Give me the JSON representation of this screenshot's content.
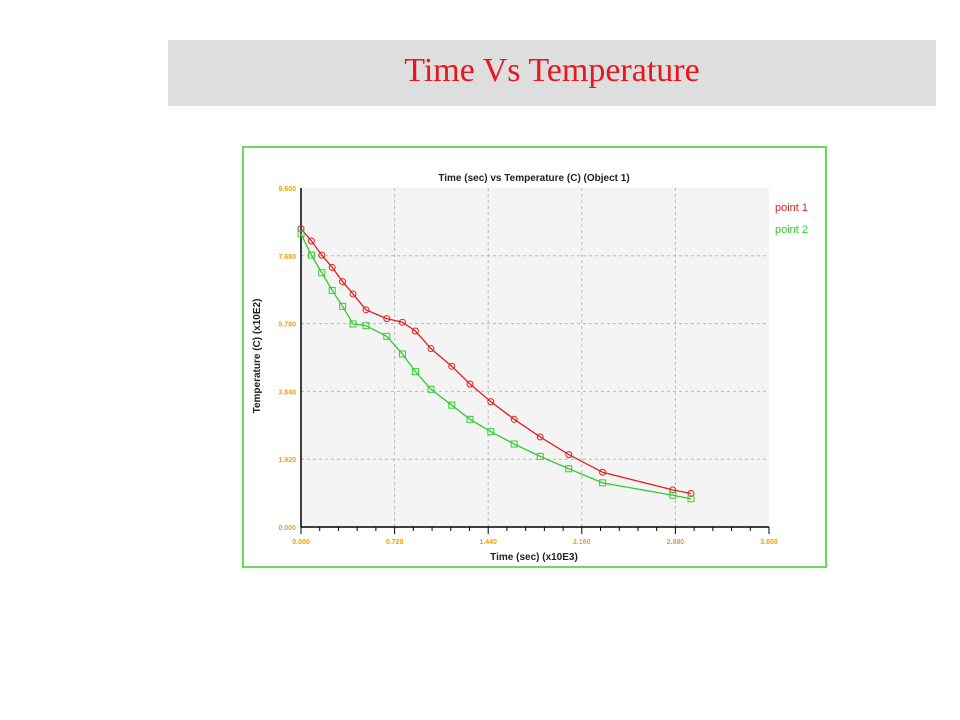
{
  "slide": {
    "title": "Time Vs Temperature"
  },
  "chart_data": {
    "type": "line",
    "title": "Time (sec) vs  Temperature (C) (Object 1)",
    "xlabel": "Time (sec) (x10E3)",
    "ylabel": "Temperature (C) (x10E2)",
    "xlim": [
      0,
      3.6
    ],
    "ylim": [
      0,
      9.6
    ],
    "xticks": [
      "0.000",
      "0.720",
      "1.440",
      "2.160",
      "2.880",
      "3.600"
    ],
    "yticks": [
      "0.000",
      "1.920",
      "3.840",
      "5.760",
      "7.680",
      "9.600"
    ],
    "grid": true,
    "legend_position": "top-right",
    "tick_color": "#f0a000",
    "series": [
      {
        "name": "point 1",
        "color": "#e02020",
        "marker": "circle",
        "x": [
          0.0,
          0.08,
          0.16,
          0.24,
          0.32,
          0.4,
          0.5,
          0.66,
          0.78,
          0.88,
          1.0,
          1.16,
          1.3,
          1.46,
          1.64,
          1.84,
          2.06,
          2.32,
          2.86,
          3.0
        ],
        "y": [
          8.45,
          8.1,
          7.7,
          7.35,
          6.95,
          6.6,
          6.15,
          5.9,
          5.8,
          5.55,
          5.05,
          4.55,
          4.05,
          3.55,
          3.05,
          2.55,
          2.05,
          1.55,
          1.05,
          0.95
        ]
      },
      {
        "name": "point 2",
        "color": "#33cc33",
        "marker": "square",
        "x": [
          0.0,
          0.08,
          0.16,
          0.24,
          0.32,
          0.4,
          0.5,
          0.66,
          0.78,
          0.88,
          1.0,
          1.16,
          1.3,
          1.46,
          1.64,
          1.84,
          2.06,
          2.32,
          2.86,
          3.0
        ],
        "y": [
          8.3,
          7.7,
          7.2,
          6.7,
          6.25,
          5.75,
          5.7,
          5.4,
          4.9,
          4.4,
          3.9,
          3.45,
          3.05,
          2.7,
          2.35,
          2.0,
          1.65,
          1.25,
          0.9,
          0.8
        ]
      }
    ]
  }
}
